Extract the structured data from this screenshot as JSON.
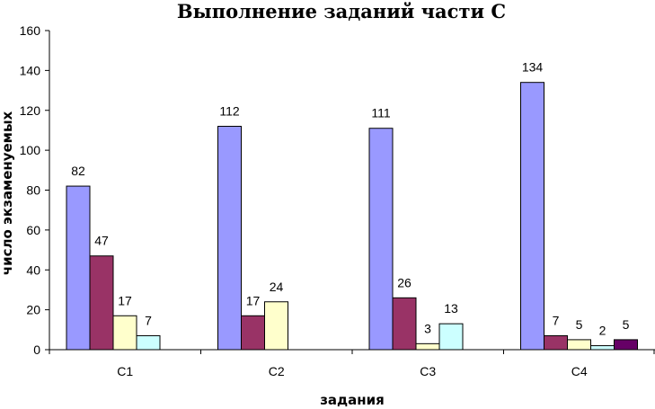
{
  "chart_data": {
    "type": "bar",
    "title": "Выполнение заданий части С",
    "xlabel": "задания",
    "ylabel": "число экзаменуемых",
    "ylim": [
      0,
      160
    ],
    "yticks": [
      0,
      20,
      40,
      60,
      80,
      100,
      120,
      140,
      160
    ],
    "grid": false,
    "legend": "none",
    "categories": [
      "C1",
      "C2",
      "C3",
      "C4"
    ],
    "series": [
      {
        "color": "#9999ff",
        "values": [
          82,
          112,
          111,
          134
        ]
      },
      {
        "color": "#993366",
        "values": [
          47,
          17,
          26,
          7
        ]
      },
      {
        "color": "#ffffcc",
        "values": [
          17,
          24,
          3,
          5
        ]
      },
      {
        "color": "#ccffff",
        "values": [
          7,
          null,
          13,
          2
        ]
      },
      {
        "color": "#660066",
        "values": [
          null,
          null,
          null,
          5
        ]
      }
    ]
  }
}
